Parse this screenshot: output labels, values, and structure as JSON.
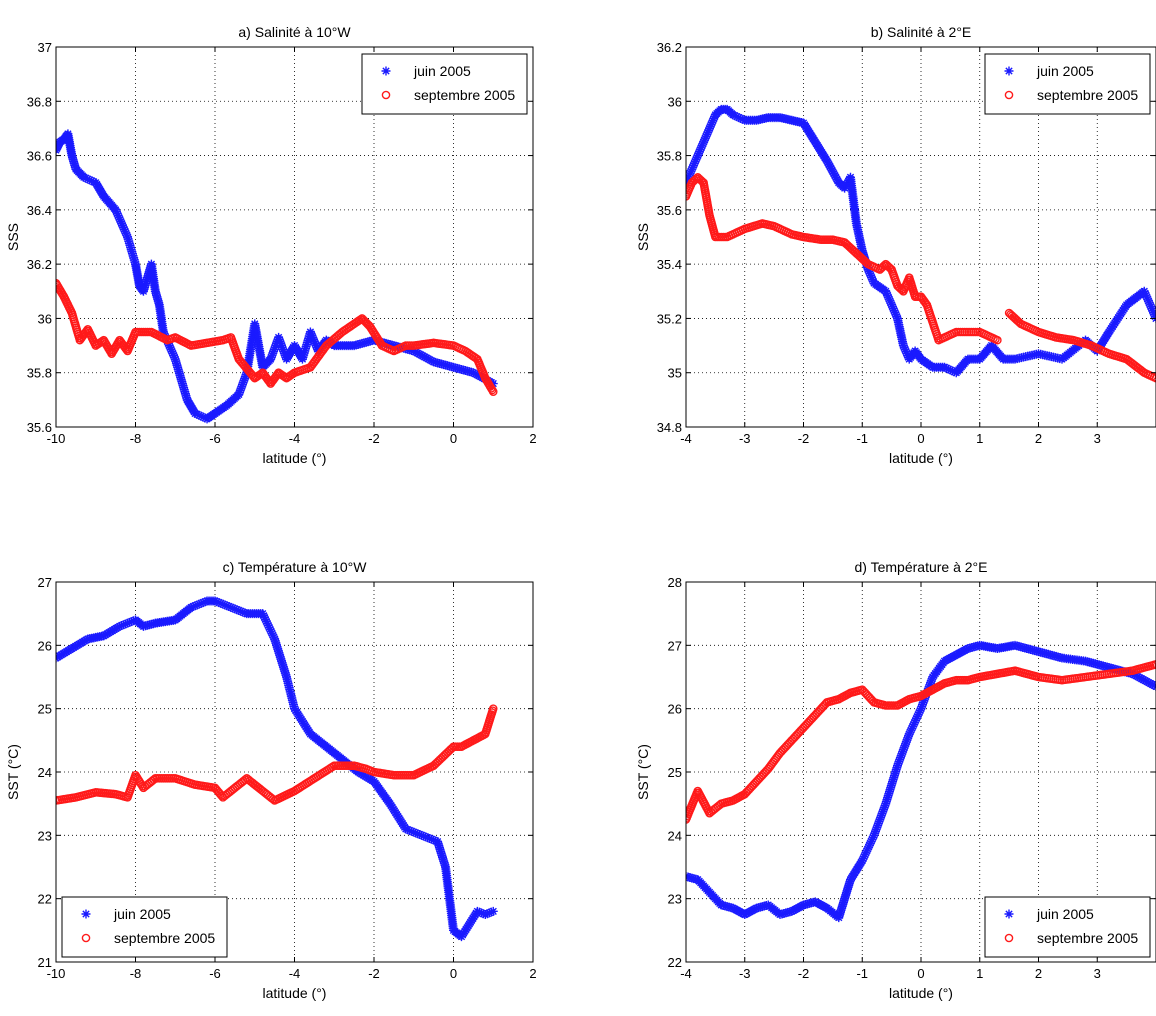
{
  "figure": {
    "background": "#ffffff"
  },
  "colors": {
    "juin": "#1a1aff",
    "septembre": "#ff1a1a",
    "grid": "#000000",
    "axis": "#000000"
  },
  "chart_data": [
    {
      "type": "line",
      "title": "a) Salinité à 10°W",
      "xlabel": "latitude (°)",
      "ylabel": "SSS",
      "xlim": [
        -10,
        2
      ],
      "ylim": [
        35.6,
        37
      ],
      "xticks": [
        -10,
        -8,
        -6,
        -4,
        -2,
        0,
        2
      ],
      "yticks": [
        35.6,
        35.8,
        36,
        36.2,
        36.4,
        36.6,
        36.8,
        37
      ],
      "xtick_labels": [
        "-10",
        "-8",
        "-6",
        "-4",
        "-2",
        "0",
        "2"
      ],
      "ytick_labels": [
        "35.6",
        "35.8",
        "36",
        "36.2",
        "36.4",
        "36.6",
        "36.8",
        "37"
      ],
      "grid": true,
      "legend_position": "top-right",
      "series": [
        {
          "name": "juin 2005",
          "marker": "star",
          "x": [
            -10,
            -9.9,
            -9.8,
            -9.7,
            -9.6,
            -9.5,
            -9.3,
            -9.0,
            -8.8,
            -8.5,
            -8.2,
            -8.0,
            -7.9,
            -7.8,
            -7.7,
            -7.6,
            -7.5,
            -7.4,
            -7.3,
            -7.0,
            -6.7,
            -6.5,
            -6.2,
            -6.0,
            -5.7,
            -5.4,
            -5.2,
            -5.0,
            -4.8,
            -4.6,
            -4.4,
            -4.2,
            -4.0,
            -3.8,
            -3.6,
            -3.4,
            -3.2,
            -3.0,
            -2.5,
            -2.0,
            -1.5,
            -1.0,
            -0.5,
            0,
            0.5,
            1.0
          ],
          "y": [
            36.62,
            36.65,
            36.66,
            36.68,
            36.6,
            36.55,
            36.52,
            36.5,
            36.45,
            36.4,
            36.3,
            36.2,
            36.12,
            36.1,
            36.15,
            36.2,
            36.1,
            36.05,
            35.95,
            35.85,
            35.7,
            35.65,
            35.63,
            35.65,
            35.68,
            35.72,
            35.8,
            35.98,
            35.82,
            35.85,
            35.93,
            35.85,
            35.9,
            35.85,
            35.95,
            35.88,
            35.92,
            35.9,
            35.9,
            35.92,
            35.9,
            35.88,
            35.84,
            35.82,
            35.8,
            35.76
          ]
        },
        {
          "name": "septembre 2005",
          "marker": "circle",
          "x": [
            -10,
            -9.8,
            -9.6,
            -9.4,
            -9.2,
            -9.0,
            -8.8,
            -8.6,
            -8.4,
            -8.2,
            -8.0,
            -7.6,
            -7.2,
            -7.0,
            -6.6,
            -6.2,
            -5.8,
            -5.6,
            -5.4,
            -5.0,
            -4.8,
            -4.6,
            -4.4,
            -4.2,
            -4.0,
            -3.6,
            -3.2,
            -2.8,
            -2.5,
            -2.3,
            -2.1,
            -1.8,
            -1.5,
            -1.2,
            -1.0,
            -0.5,
            0,
            0.3,
            0.6,
            0.8,
            1.0
          ],
          "y": [
            36.13,
            36.08,
            36.02,
            35.92,
            35.96,
            35.9,
            35.92,
            35.87,
            35.92,
            35.88,
            35.95,
            35.95,
            35.92,
            35.93,
            35.9,
            35.91,
            35.92,
            35.93,
            35.85,
            35.78,
            35.8,
            35.76,
            35.8,
            35.78,
            35.8,
            35.82,
            35.9,
            35.95,
            35.98,
            36.0,
            35.97,
            35.9,
            35.88,
            35.9,
            35.9,
            35.91,
            35.9,
            35.88,
            35.85,
            35.78,
            35.73
          ]
        }
      ]
    },
    {
      "type": "line",
      "title": "b) Salinité à 2°E",
      "xlabel": "latitude (°)",
      "ylabel": "SSS",
      "xlim": [
        -4,
        4
      ],
      "ylim": [
        34.8,
        36.2
      ],
      "xticks": [
        -4,
        -3,
        -2,
        -1,
        0,
        1,
        2,
        3
      ],
      "yticks": [
        34.8,
        35,
        35.2,
        35.4,
        35.6,
        35.8,
        36,
        36.2
      ],
      "xtick_labels": [
        "-4",
        "-3",
        "-2",
        "-1",
        "0",
        "1",
        "2",
        "3"
      ],
      "ytick_labels": [
        "34.8",
        "35",
        "35.2",
        "35.4",
        "35.6",
        "35.8",
        "36",
        "36.2"
      ],
      "grid": true,
      "legend_position": "top-right",
      "series": [
        {
          "name": "juin 2005",
          "marker": "star",
          "x": [
            -4,
            -3.9,
            -3.8,
            -3.7,
            -3.6,
            -3.5,
            -3.4,
            -3.3,
            -3.2,
            -3.0,
            -2.8,
            -2.6,
            -2.4,
            -2.2,
            -2.0,
            -1.8,
            -1.6,
            -1.4,
            -1.3,
            -1.2,
            -1.1,
            -1.0,
            -0.9,
            -0.8,
            -0.6,
            -0.4,
            -0.3,
            -0.2,
            -0.1,
            0,
            0.2,
            0.4,
            0.6,
            0.8,
            1.0,
            1.2,
            1.4,
            1.6,
            2.0,
            2.4,
            2.8,
            3.0,
            3.2,
            3.5,
            3.8,
            4.0
          ],
          "y": [
            35.7,
            35.75,
            35.8,
            35.85,
            35.9,
            35.95,
            35.97,
            35.97,
            35.95,
            35.93,
            35.93,
            35.94,
            35.94,
            35.93,
            35.92,
            35.85,
            35.78,
            35.7,
            35.68,
            35.72,
            35.55,
            35.45,
            35.38,
            35.33,
            35.3,
            35.2,
            35.1,
            35.05,
            35.08,
            35.05,
            35.02,
            35.02,
            35.0,
            35.05,
            35.05,
            35.1,
            35.05,
            35.05,
            35.07,
            35.05,
            35.12,
            35.08,
            35.15,
            35.25,
            35.3,
            35.2
          ]
        },
        {
          "name": "septembre 2005",
          "marker": "circle",
          "x": [
            -4,
            -3.9,
            -3.8,
            -3.7,
            -3.6,
            -3.5,
            -3.3,
            -3.0,
            -2.7,
            -2.5,
            -2.2,
            -2.0,
            -1.7,
            -1.5,
            -1.3,
            -1.1,
            -0.9,
            -0.7,
            -0.6,
            -0.5,
            -0.4,
            -0.3,
            -0.2,
            -0.1,
            0,
            0.1,
            0.3,
            0.6,
            1.0,
            1.3
          ],
          "y": [
            35.65,
            35.7,
            35.72,
            35.7,
            35.58,
            35.5,
            35.5,
            35.53,
            35.55,
            35.54,
            35.51,
            35.5,
            35.49,
            35.49,
            35.48,
            35.44,
            35.4,
            35.38,
            35.4,
            35.38,
            35.32,
            35.3,
            35.35,
            35.28,
            35.28,
            35.25,
            35.12,
            35.15,
            35.15,
            35.12
          ]
        },
        {
          "name": "",
          "marker": "circle",
          "legend": false,
          "x": [
            1.5,
            1.7,
            2.0,
            2.3,
            2.6,
            2.9,
            3.2,
            3.5,
            3.8,
            4.0
          ],
          "y": [
            35.22,
            35.18,
            35.15,
            35.13,
            35.12,
            35.1,
            35.07,
            35.05,
            35.0,
            34.98
          ]
        }
      ]
    },
    {
      "type": "line",
      "title": "c) Température à 10°W",
      "xlabel": "latitude (°)",
      "ylabel": "SST (°C)",
      "xlim": [
        -10,
        2
      ],
      "ylim": [
        21,
        27
      ],
      "xticks": [
        -10,
        -8,
        -6,
        -4,
        -2,
        0,
        2
      ],
      "yticks": [
        21,
        22,
        23,
        24,
        25,
        26,
        27
      ],
      "xtick_labels": [
        "-10",
        "-8",
        "-6",
        "-4",
        "-2",
        "0",
        "2"
      ],
      "ytick_labels": [
        "21",
        "22",
        "23",
        "24",
        "25",
        "26",
        "27"
      ],
      "grid": true,
      "legend_position": "bottom-left",
      "series": [
        {
          "name": "juin 2005",
          "marker": "star",
          "x": [
            -10,
            -9.6,
            -9.2,
            -8.8,
            -8.4,
            -8.0,
            -7.8,
            -7.5,
            -7.0,
            -6.6,
            -6.2,
            -6.0,
            -5.6,
            -5.2,
            -4.8,
            -4.5,
            -4.2,
            -4.0,
            -3.6,
            -3.2,
            -2.8,
            -2.4,
            -2.0,
            -1.6,
            -1.2,
            -0.8,
            -0.4,
            -0.2,
            0,
            0.2,
            0.4,
            0.6,
            0.8,
            1.0
          ],
          "y": [
            25.8,
            25.95,
            26.1,
            26.15,
            26.3,
            26.4,
            26.3,
            26.35,
            26.4,
            26.6,
            26.7,
            26.7,
            26.6,
            26.5,
            26.5,
            26.1,
            25.5,
            25.0,
            24.6,
            24.4,
            24.2,
            24.0,
            23.85,
            23.5,
            23.1,
            23.0,
            22.9,
            22.5,
            21.5,
            21.4,
            21.6,
            21.8,
            21.75,
            21.8
          ]
        },
        {
          "name": "septembre 2005",
          "marker": "circle",
          "x": [
            -10,
            -9.5,
            -9.0,
            -8.5,
            -8.2,
            -8.0,
            -7.8,
            -7.5,
            -7.0,
            -6.5,
            -6.0,
            -5.8,
            -5.5,
            -5.2,
            -5.0,
            -4.8,
            -4.5,
            -4.0,
            -3.5,
            -3.0,
            -2.5,
            -2.2,
            -2.0,
            -1.5,
            -1.0,
            -0.5,
            0,
            0.2,
            0.5,
            0.8,
            1.0
          ],
          "y": [
            23.55,
            23.6,
            23.68,
            23.65,
            23.6,
            23.95,
            23.75,
            23.9,
            23.9,
            23.8,
            23.75,
            23.6,
            23.75,
            23.9,
            23.8,
            23.7,
            23.55,
            23.7,
            23.9,
            24.1,
            24.1,
            24.05,
            24.0,
            23.95,
            23.95,
            24.1,
            24.4,
            24.4,
            24.5,
            24.6,
            25.0
          ]
        }
      ]
    },
    {
      "type": "line",
      "title": "d) Température à 2°E",
      "xlabel": "latitude (°)",
      "ylabel": "SST (°C)",
      "xlim": [
        -4,
        4
      ],
      "ylim": [
        22,
        28
      ],
      "xticks": [
        -4,
        -3,
        -2,
        -1,
        0,
        1,
        2,
        3
      ],
      "yticks": [
        22,
        23,
        24,
        25,
        26,
        27,
        28
      ],
      "xtick_labels": [
        "-4",
        "-3",
        "-2",
        "-1",
        "0",
        "1",
        "2",
        "3"
      ],
      "ytick_labels": [
        "22",
        "23",
        "24",
        "25",
        "26",
        "27",
        "28"
      ],
      "grid": true,
      "legend_position": "bottom-right",
      "series": [
        {
          "name": "juin 2005",
          "marker": "star",
          "x": [
            -4,
            -3.8,
            -3.6,
            -3.4,
            -3.2,
            -3.0,
            -2.8,
            -2.6,
            -2.4,
            -2.2,
            -2.0,
            -1.8,
            -1.6,
            -1.4,
            -1.3,
            -1.2,
            -1.0,
            -0.8,
            -0.6,
            -0.4,
            -0.2,
            0,
            0.2,
            0.4,
            0.6,
            0.8,
            1.0,
            1.3,
            1.6,
            2.0,
            2.4,
            2.8,
            3.2,
            3.6,
            4.0
          ],
          "y": [
            23.35,
            23.3,
            23.1,
            22.9,
            22.85,
            22.75,
            22.85,
            22.9,
            22.75,
            22.8,
            22.9,
            22.95,
            22.85,
            22.7,
            23.0,
            23.3,
            23.6,
            24.0,
            24.5,
            25.1,
            25.6,
            26.0,
            26.5,
            26.75,
            26.85,
            26.95,
            27.0,
            26.95,
            27.0,
            26.9,
            26.8,
            26.75,
            26.65,
            26.55,
            26.35
          ]
        },
        {
          "name": "septembre 2005",
          "marker": "circle",
          "x": [
            -4,
            -3.8,
            -3.6,
            -3.4,
            -3.2,
            -3.0,
            -2.8,
            -2.6,
            -2.4,
            -2.2,
            -2.0,
            -1.8,
            -1.6,
            -1.4,
            -1.2,
            -1.0,
            -0.8,
            -0.6,
            -0.4,
            -0.2,
            0,
            0.2,
            0.4,
            0.6,
            0.8,
            1.0,
            1.3,
            1.6,
            2.0,
            2.4,
            2.8,
            3.2,
            3.6,
            4.0
          ],
          "y": [
            24.25,
            24.7,
            24.35,
            24.5,
            24.55,
            24.65,
            24.85,
            25.05,
            25.3,
            25.5,
            25.7,
            25.9,
            26.1,
            26.15,
            26.25,
            26.3,
            26.1,
            26.05,
            26.05,
            26.15,
            26.2,
            26.3,
            26.4,
            26.45,
            26.45,
            26.5,
            26.55,
            26.6,
            26.5,
            26.45,
            26.5,
            26.55,
            26.6,
            26.7
          ]
        }
      ]
    }
  ]
}
